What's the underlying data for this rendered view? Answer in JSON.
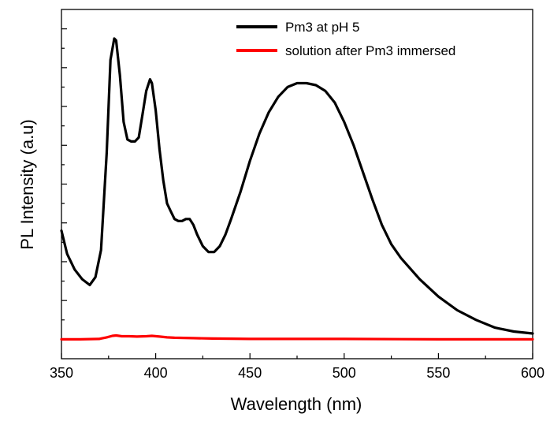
{
  "chart_data": {
    "type": "line",
    "xlabel": "Wavelength (nm)",
    "ylabel": "PL Intensity (a.u)",
    "xlim": [
      350,
      600
    ],
    "ylim": [
      -0.5,
      8.5
    ],
    "x_ticks": [
      350,
      400,
      450,
      500,
      550,
      600
    ],
    "x_tick_labels": [
      "350",
      "400",
      "450",
      "500",
      "550",
      "600"
    ],
    "y_tick_labels_shown": false,
    "grid": false,
    "legend_position": "top-right",
    "series": [
      {
        "name": "Pm3 at pH 5",
        "color": "#000000",
        "x": [
          350,
          353,
          357,
          361,
          365,
          368,
          371,
          374,
          376,
          378,
          379,
          381,
          383,
          385,
          387,
          389,
          391,
          393,
          395,
          397,
          398,
          400,
          402,
          404,
          406,
          408,
          410,
          412,
          414,
          416,
          418,
          420,
          422,
          425,
          428,
          431,
          434,
          437,
          440,
          445,
          450,
          455,
          460,
          465,
          470,
          475,
          480,
          485,
          490,
          495,
          500,
          505,
          510,
          515,
          520,
          525,
          530,
          540,
          550,
          560,
          570,
          580,
          590,
          600
        ],
        "values": [
          2.8,
          2.2,
          1.8,
          1.55,
          1.4,
          1.6,
          2.3,
          4.8,
          7.2,
          7.75,
          7.7,
          6.8,
          5.6,
          5.15,
          5.1,
          5.1,
          5.2,
          5.8,
          6.4,
          6.7,
          6.6,
          5.9,
          4.9,
          4.1,
          3.5,
          3.3,
          3.1,
          3.05,
          3.05,
          3.1,
          3.1,
          2.95,
          2.7,
          2.4,
          2.25,
          2.25,
          2.4,
          2.7,
          3.1,
          3.8,
          4.6,
          5.3,
          5.85,
          6.25,
          6.5,
          6.6,
          6.6,
          6.55,
          6.4,
          6.1,
          5.6,
          5.0,
          4.3,
          3.6,
          2.95,
          2.45,
          2.1,
          1.55,
          1.1,
          0.75,
          0.5,
          0.3,
          0.2,
          0.15
        ]
      },
      {
        "name": "solution after Pm3 immersed",
        "color": "#ff0000",
        "x": [
          350,
          360,
          370,
          374,
          377,
          379,
          382,
          386,
          390,
          395,
          398,
          402,
          406,
          410,
          420,
          430,
          450,
          500,
          550,
          600
        ],
        "values": [
          0.0,
          0.0,
          0.01,
          0.05,
          0.09,
          0.1,
          0.08,
          0.08,
          0.07,
          0.08,
          0.09,
          0.07,
          0.05,
          0.04,
          0.03,
          0.02,
          0.01,
          0.01,
          0.0,
          0.0
        ]
      }
    ]
  },
  "colors": {
    "axis": "#000000",
    "background": "#ffffff"
  }
}
